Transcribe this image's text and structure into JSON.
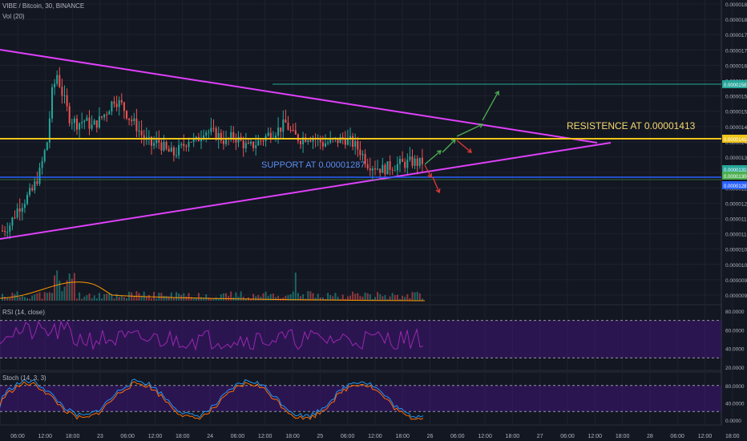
{
  "header": {
    "symbol_line": "VIBE / Bitcoin, 30, BINANCE",
    "volume_label": "Vol (20)"
  },
  "annotations": {
    "resistance": "RESISTENCE AT 0.00001413",
    "support": "SUPPORT AT 0.00001287"
  },
  "price_axis": {
    "ticks": [
      "0.00001850",
      "0.00001800",
      "0.00001750",
      "0.00001700",
      "0.00001650",
      "0.00001600",
      "0.00001550",
      "0.00001500",
      "0.00001450",
      "0.00001400",
      "0.00001350",
      "0.00001300",
      "0.00001250",
      "0.00001200",
      "0.00001150",
      "0.00001100",
      "0.00001050",
      "0.00001000",
      "0.00000950",
      "0.00000900"
    ],
    "badges": [
      {
        "text": "0.00001587",
        "color": "#26a69a"
      },
      {
        "text": "0.00001416",
        "color": "#f0c419"
      },
      {
        "text": "0.00001319",
        "color": "#26a69a"
      },
      {
        "text": "0.00001306",
        "color": "#4caf50"
      },
      {
        "text": "0.00001287",
        "color": "#2962ff"
      }
    ]
  },
  "rsi": {
    "label": "RSI (14, close)",
    "ticks": [
      "80.0000",
      "60.0000",
      "40.0000",
      "20.0000"
    ]
  },
  "stoch": {
    "label": "Stoch (14, 3, 3)",
    "ticks": [
      "80.0000",
      "40.0000",
      "0.0000"
    ]
  },
  "time_axis": [
    "06:00",
    "12:00",
    "18:00",
    "23",
    "06:00",
    "12:00",
    "18:00",
    "24",
    "06:00",
    "12:00",
    "18:00",
    "25",
    "06:00",
    "12:00",
    "18:00",
    "26",
    "06:00",
    "12:00",
    "18:00",
    "27",
    "06:00",
    "12:00",
    "18:00",
    "28",
    "06:00",
    "12:00",
    "18:00"
  ],
  "colors": {
    "background": "#131722",
    "up": "#26a69a",
    "down": "#ef5350",
    "triangle": "#e040fb",
    "resistance": "#f0c419",
    "support": "#2962ff",
    "rsi_line": "#9c27b0",
    "stoch_k": "#2196f3",
    "stoch_d": "#ff6d00",
    "arrow_green": "#4caf50",
    "arrow_red": "#e53935"
  },
  "chart_data": {
    "type": "candlestick",
    "close_path": [
      [
        0,
        1110
      ],
      [
        6,
        1130
      ],
      [
        12,
        1180
      ],
      [
        18,
        1210
      ],
      [
        24,
        1240
      ],
      [
        30,
        1300
      ],
      [
        36,
        1400
      ],
      [
        40,
        1560
      ],
      [
        44,
        1620
      ],
      [
        48,
        1560
      ],
      [
        54,
        1480
      ],
      [
        60,
        1460
      ],
      [
        66,
        1470
      ],
      [
        72,
        1450
      ],
      [
        78,
        1470
      ],
      [
        84,
        1500
      ],
      [
        90,
        1540
      ],
      [
        96,
        1520
      ],
      [
        102,
        1480
      ],
      [
        108,
        1450
      ],
      [
        114,
        1410
      ],
      [
        120,
        1390
      ],
      [
        126,
        1400
      ],
      [
        132,
        1370
      ],
      [
        138,
        1360
      ],
      [
        144,
        1380
      ],
      [
        150,
        1410
      ],
      [
        156,
        1400
      ],
      [
        162,
        1440
      ],
      [
        168,
        1430
      ],
      [
        174,
        1420
      ],
      [
        180,
        1400
      ],
      [
        186,
        1420
      ],
      [
        192,
        1400
      ],
      [
        198,
        1380
      ],
      [
        204,
        1395
      ],
      [
        210,
        1410
      ],
      [
        216,
        1430
      ],
      [
        222,
        1440
      ],
      [
        228,
        1460
      ],
      [
        234,
        1420
      ],
      [
        240,
        1410
      ],
      [
        246,
        1420
      ],
      [
        252,
        1410
      ],
      [
        258,
        1395
      ],
      [
        264,
        1400
      ],
      [
        270,
        1405
      ],
      [
        276,
        1410
      ],
      [
        282,
        1395
      ],
      [
        288,
        1370
      ],
      [
        294,
        1330
      ],
      [
        300,
        1320
      ],
      [
        306,
        1310
      ],
      [
        312,
        1320
      ],
      [
        318,
        1325
      ],
      [
        324,
        1330
      ],
      [
        330,
        1335
      ],
      [
        336,
        1330
      ],
      [
        340,
        1340
      ]
    ],
    "resistance": 1.413e-05,
    "support": 1.287e-05,
    "ylim": [
      9e-06,
      1.86e-05
    ]
  }
}
